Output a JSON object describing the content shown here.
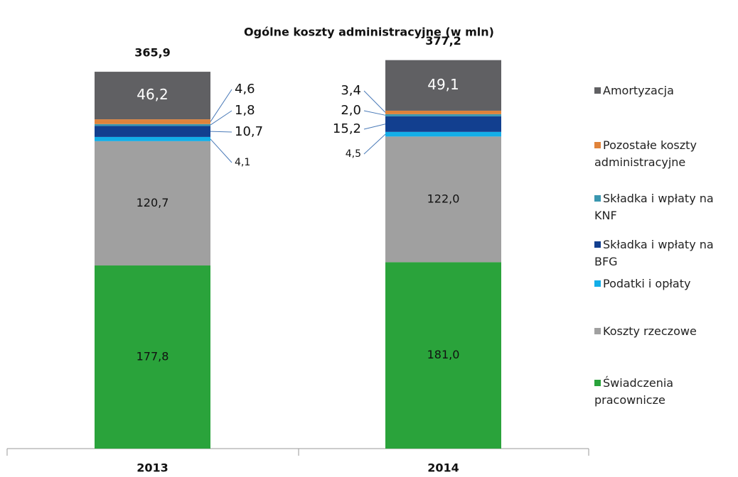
{
  "chart_data": {
    "type": "stacked_bar",
    "title": "Ogólne koszty administracyjne (w mln)",
    "categories": [
      "2013",
      "2014"
    ],
    "series": [
      {
        "name": "Świadczenia pracownicze",
        "color": "#2aa33b",
        "values": [
          177.8,
          181.0
        ],
        "value_labels": [
          "177,8",
          "181,0"
        ]
      },
      {
        "name": "Koszty rzeczowe",
        "color": "#a0a0a0",
        "values": [
          120.7,
          122.0
        ],
        "value_labels": [
          "120,7",
          "122,0"
        ]
      },
      {
        "name": "Podatki i opłaty",
        "color": "#13aee8",
        "values": [
          4.1,
          4.5
        ],
        "value_labels": [
          "4,1",
          "4,5"
        ]
      },
      {
        "name": "Składka i wpłaty na BFG",
        "color": "#123f8f",
        "values": [
          10.7,
          15.2
        ],
        "value_labels": [
          "10,7",
          "15,2"
        ]
      },
      {
        "name": "Składka i wpłaty na KNF",
        "color": "#3a97b0",
        "values": [
          1.8,
          2.0
        ],
        "value_labels": [
          "1,8",
          "2,0"
        ]
      },
      {
        "name": "Pozostałe koszty administracyjne",
        "color": "#e0833a",
        "values": [
          4.6,
          3.4
        ],
        "value_labels": [
          "4,6",
          "3,4"
        ]
      },
      {
        "name": "Amortyzacja",
        "color": "#606063",
        "values": [
          46.2,
          49.1
        ],
        "value_labels": [
          "46,2",
          "49,1"
        ]
      }
    ],
    "totals": [
      365.9,
      377.2
    ],
    "totals_labels": [
      "365,9",
      "377,2"
    ]
  }
}
